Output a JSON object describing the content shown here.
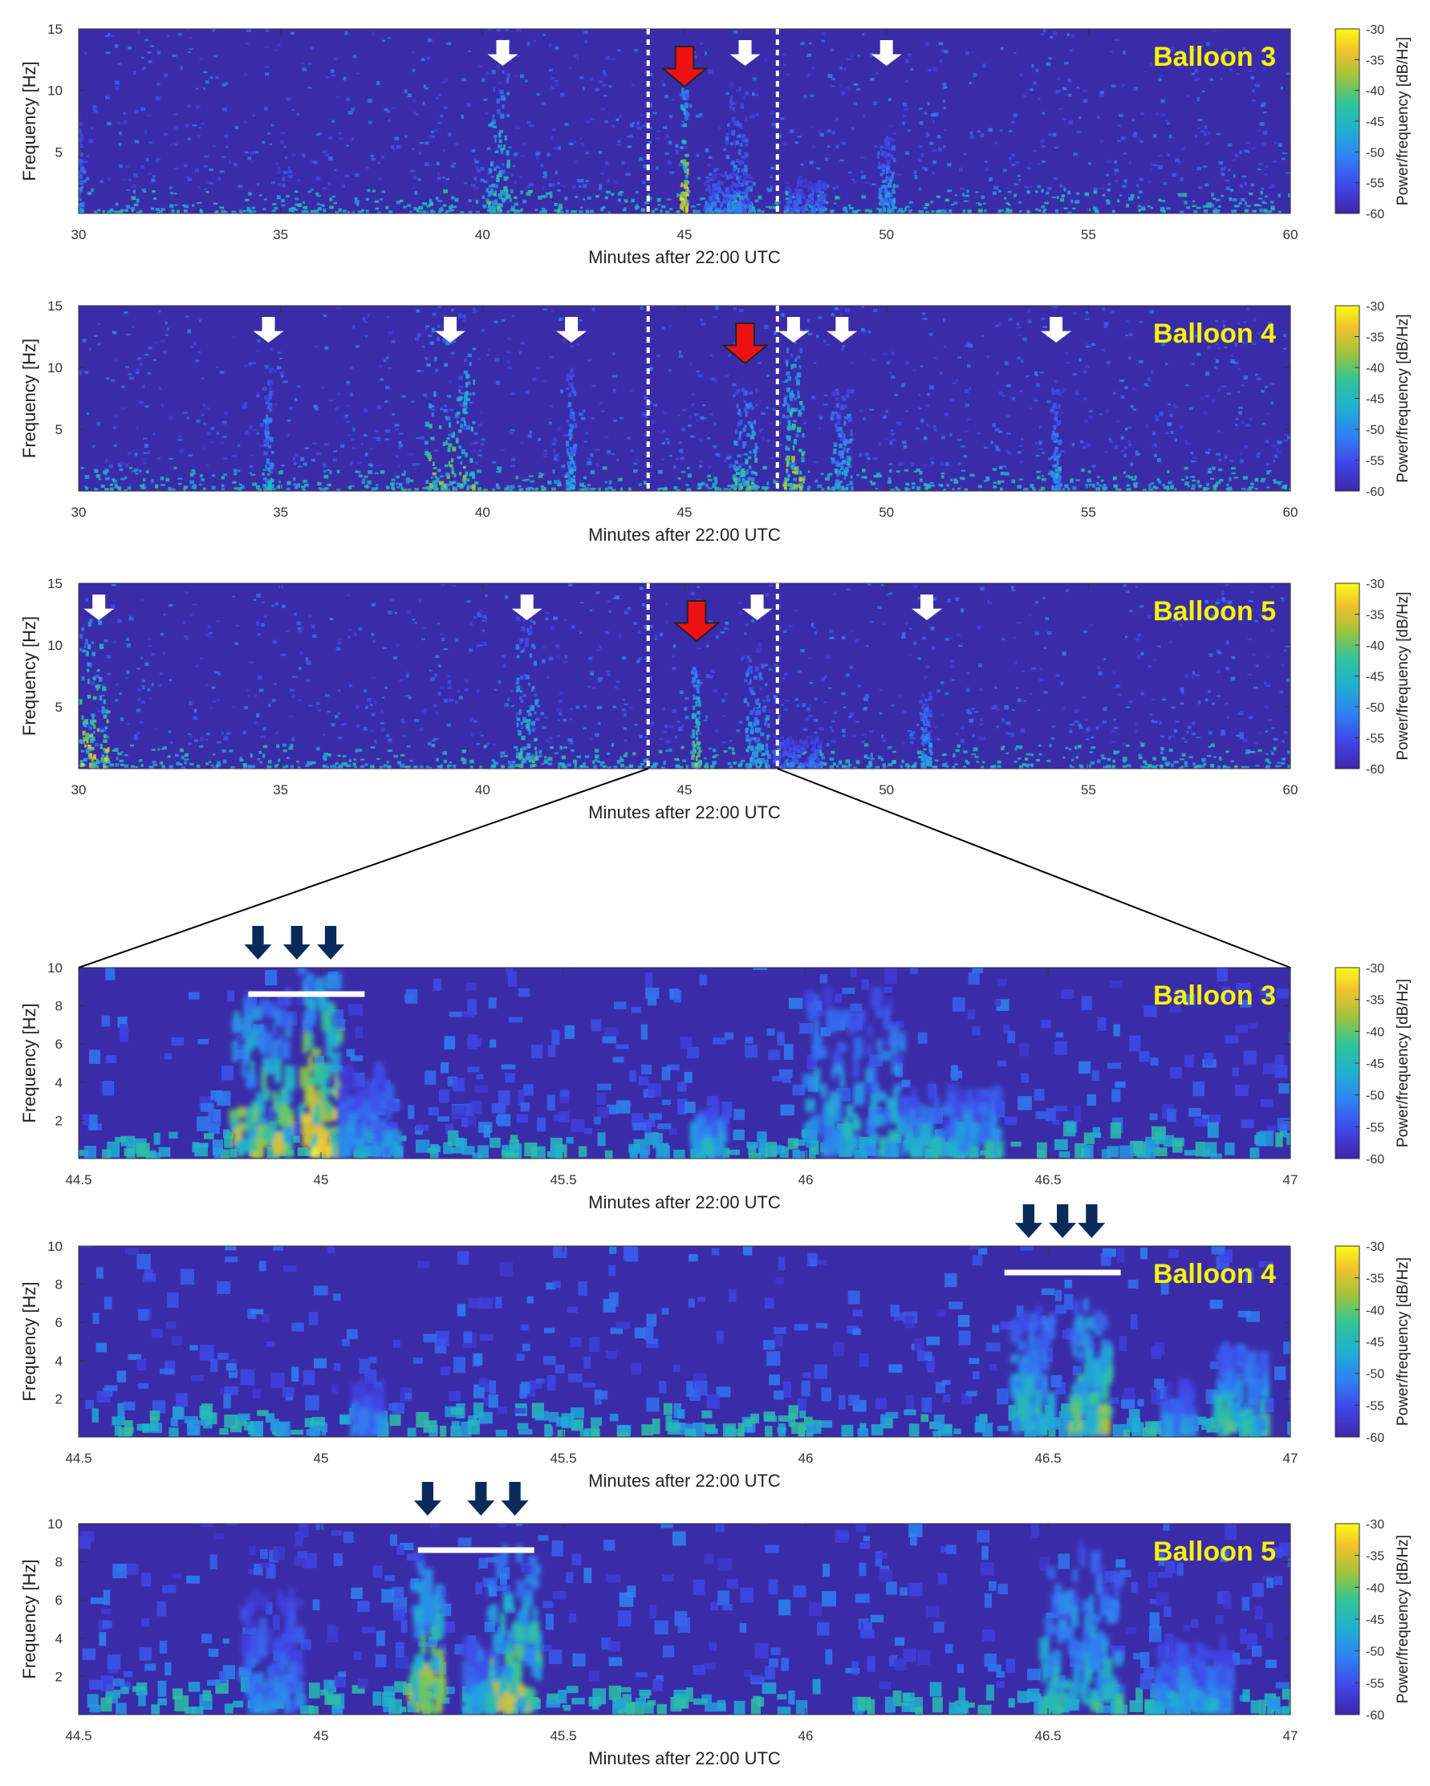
{
  "figure": {
    "xlabel": "Minutes after 22:00 UTC",
    "ylabel": "Frequency [Hz]",
    "colorbar_label": "Power/frequency [dB/Hz]",
    "colorbar_ticks": [
      "-30",
      "-35",
      "-40",
      "-45",
      "-50",
      "-55",
      "-60"
    ],
    "colors": {
      "background_low": "#3a2ca8",
      "cmap": [
        "#3e26a8",
        "#4145e8",
        "#2e82f2",
        "#1fb0d3",
        "#32c595",
        "#a4c437",
        "#f2c12f",
        "#f9fb15"
      ],
      "balloon_label": "#f5f500",
      "white_arrow": "#ffffff",
      "red_arrow": "#ee1111",
      "navy_arrow": "#0b2a5c"
    }
  },
  "chart_data": [
    {
      "type": "heatmap",
      "title": "Balloon 3",
      "xlim": [
        30,
        60
      ],
      "ylim": [
        0,
        15
      ],
      "xticks": [
        30,
        35,
        40,
        45,
        50,
        55,
        60
      ],
      "xtick_labels": [
        "30",
        "35",
        "40",
        "45",
        "50",
        "55",
        "60"
      ],
      "yticks": [
        5,
        10,
        15
      ],
      "ytick_labels": [
        "5",
        "10",
        "15"
      ],
      "selection_window": [
        44.1,
        47.3
      ],
      "white_arrows_at": [
        40.5,
        46.5,
        50.0
      ],
      "red_arrow_at": 45.0,
      "events": [
        {
          "t": 40.4,
          "width": 0.25,
          "fmax": 12,
          "strength": 0.6
        },
        {
          "t": 45.0,
          "width": 0.08,
          "fmax": 10,
          "strength": 0.9
        },
        {
          "t": 46.3,
          "width": 0.25,
          "fmax": 10,
          "strength": 0.4
        },
        {
          "t": 46.1,
          "width": 0.6,
          "fmax": 3,
          "strength": 0.35
        },
        {
          "t": 48.0,
          "width": 0.5,
          "fmax": 2.5,
          "strength": 0.3
        },
        {
          "t": 50.0,
          "width": 0.2,
          "fmax": 6,
          "strength": 0.45
        },
        {
          "t": 30.0,
          "width": 0.1,
          "fmax": 8,
          "strength": 0.35
        }
      ]
    },
    {
      "type": "heatmap",
      "title": "Balloon 4",
      "xlim": [
        30,
        60
      ],
      "ylim": [
        0,
        15
      ],
      "xticks": [
        30,
        35,
        40,
        45,
        50,
        55,
        60
      ],
      "xtick_labels": [
        "30",
        "35",
        "40",
        "45",
        "50",
        "55",
        "60"
      ],
      "yticks": [
        5,
        10,
        15
      ],
      "ytick_labels": [
        "5",
        "10",
        "15"
      ],
      "selection_window": [
        44.1,
        47.3
      ],
      "white_arrows_at": [
        34.7,
        39.2,
        42.2,
        47.7,
        48.9,
        54.2
      ],
      "red_arrow_at": 46.5,
      "events": [
        {
          "t": 34.7,
          "width": 0.1,
          "fmax": 10,
          "strength": 0.45
        },
        {
          "t": 39.2,
          "width": 0.6,
          "fmax": 15,
          "strength": 0.7
        },
        {
          "t": 42.2,
          "width": 0.1,
          "fmax": 10,
          "strength": 0.45
        },
        {
          "t": 46.5,
          "width": 0.3,
          "fmax": 8,
          "strength": 0.6
        },
        {
          "t": 47.7,
          "width": 0.25,
          "fmax": 12,
          "strength": 0.8
        },
        {
          "t": 48.9,
          "width": 0.25,
          "fmax": 8,
          "strength": 0.5
        },
        {
          "t": 54.2,
          "width": 0.1,
          "fmax": 8,
          "strength": 0.45
        }
      ]
    },
    {
      "type": "heatmap",
      "title": "Balloon 5",
      "xlim": [
        30,
        60
      ],
      "ylim": [
        0,
        15
      ],
      "xticks": [
        30,
        35,
        40,
        45,
        50,
        55,
        60
      ],
      "xtick_labels": [
        "30",
        "35",
        "40",
        "45",
        "50",
        "55",
        "60"
      ],
      "yticks": [
        5,
        10,
        15
      ],
      "ytick_labels": [
        "5",
        "10",
        "15"
      ],
      "selection_window": [
        44.1,
        47.3
      ],
      "white_arrows_at": [
        30.5,
        41.1,
        46.8,
        51.0
      ],
      "red_arrow_at": 45.3,
      "events": [
        {
          "t": 30.4,
          "width": 0.35,
          "fmax": 12,
          "strength": 0.85
        },
        {
          "t": 41.1,
          "width": 0.25,
          "fmax": 12,
          "strength": 0.6
        },
        {
          "t": 45.3,
          "width": 0.1,
          "fmax": 8,
          "strength": 0.75
        },
        {
          "t": 46.8,
          "width": 0.3,
          "fmax": 10,
          "strength": 0.5
        },
        {
          "t": 47.8,
          "width": 0.6,
          "fmax": 2.5,
          "strength": 0.3
        },
        {
          "t": 51.0,
          "width": 0.12,
          "fmax": 6,
          "strength": 0.45
        }
      ]
    },
    {
      "type": "heatmap",
      "title": "Balloon 3",
      "xlim": [
        44.5,
        47
      ],
      "ylim": [
        0,
        10
      ],
      "xticks": [
        44.5,
        45,
        45.5,
        46,
        46.5,
        47
      ],
      "xtick_labels": [
        "44.5",
        "45",
        "45.5",
        "46",
        "46.5",
        "47"
      ],
      "yticks": [
        2,
        4,
        6,
        8,
        10
      ],
      "ytick_labels": [
        "2",
        "4",
        "6",
        "8",
        "10"
      ],
      "navy_arrows_at": [
        44.87,
        44.95,
        45.02
      ],
      "white_bar": [
        44.85,
        45.09
      ],
      "events": [
        {
          "t": 44.88,
          "width": 0.06,
          "fmax": 8,
          "strength": 0.8
        },
        {
          "t": 45.0,
          "width": 0.04,
          "fmax": 10,
          "strength": 0.95
        },
        {
          "t": 45.1,
          "width": 0.06,
          "fmax": 4,
          "strength": 0.4
        },
        {
          "t": 45.8,
          "width": 0.03,
          "fmax": 2,
          "strength": 0.5
        },
        {
          "t": 46.1,
          "width": 0.1,
          "fmax": 8,
          "strength": 0.5
        },
        {
          "t": 46.3,
          "width": 0.1,
          "fmax": 3,
          "strength": 0.5
        }
      ]
    },
    {
      "type": "heatmap",
      "title": "Balloon 4",
      "xlim": [
        44.5,
        47
      ],
      "ylim": [
        0,
        10
      ],
      "xticks": [
        44.5,
        45,
        45.5,
        46,
        46.5,
        47
      ],
      "xtick_labels": [
        "44.5",
        "45",
        "45.5",
        "46",
        "46.5",
        "47"
      ],
      "yticks": [
        2,
        4,
        6,
        8,
        10
      ],
      "ytick_labels": [
        "2",
        "4",
        "6",
        "8",
        "10"
      ],
      "navy_arrows_at": [
        46.46,
        46.53,
        46.59
      ],
      "white_bar": [
        46.41,
        46.65
      ],
      "events": [
        {
          "t": 45.1,
          "width": 0.03,
          "fmax": 2,
          "strength": 0.35
        },
        {
          "t": 46.47,
          "width": 0.04,
          "fmax": 6,
          "strength": 0.55
        },
        {
          "t": 46.59,
          "width": 0.04,
          "fmax": 7,
          "strength": 0.75
        },
        {
          "t": 46.9,
          "width": 0.05,
          "fmax": 4,
          "strength": 0.6
        },
        {
          "t": 46.77,
          "width": 0.03,
          "fmax": 2,
          "strength": 0.4
        }
      ]
    },
    {
      "type": "heatmap",
      "title": "Balloon 5",
      "xlim": [
        44.5,
        47
      ],
      "ylim": [
        0,
        10
      ],
      "xticks": [
        44.5,
        45,
        45.5,
        46,
        46.5,
        47
      ],
      "xtick_labels": [
        "44.5",
        "45",
        "45.5",
        "46",
        "46.5",
        "47"
      ],
      "yticks": [
        2,
        4,
        6,
        8,
        10
      ],
      "ytick_labels": [
        "2",
        "4",
        "6",
        "8",
        "10"
      ],
      "navy_arrows_at": [
        45.22,
        45.33,
        45.4
      ],
      "white_bar": [
        45.2,
        45.44
      ],
      "events": [
        {
          "t": 44.9,
          "width": 0.06,
          "fmax": 6,
          "strength": 0.35
        },
        {
          "t": 45.22,
          "width": 0.03,
          "fmax": 8,
          "strength": 0.8
        },
        {
          "t": 45.33,
          "width": 0.03,
          "fmax": 3,
          "strength": 0.5
        },
        {
          "t": 45.4,
          "width": 0.05,
          "fmax": 8,
          "strength": 0.75
        },
        {
          "t": 46.57,
          "width": 0.08,
          "fmax": 8,
          "strength": 0.55
        },
        {
          "t": 46.8,
          "width": 0.08,
          "fmax": 3,
          "strength": 0.45
        }
      ]
    }
  ]
}
